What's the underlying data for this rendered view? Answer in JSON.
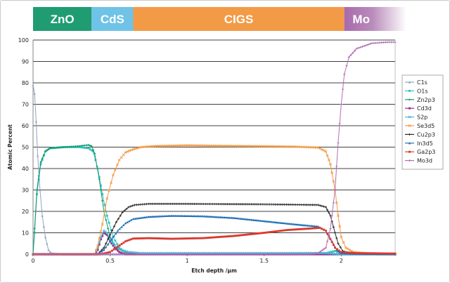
{
  "chart_data": {
    "type": "line",
    "xlabel": "Etch depth /µm",
    "ylabel": "Atomic Percent",
    "xlim": [
      0,
      2.35
    ],
    "ylim": [
      0,
      100
    ],
    "yticks": [
      0,
      10,
      20,
      30,
      40,
      50,
      60,
      70,
      80,
      90,
      100
    ],
    "xticks": [
      0,
      0.5,
      1,
      1.5,
      2
    ],
    "xtick_labels": [
      "0",
      "0.5",
      "1",
      "1.5",
      "2"
    ],
    "grid": "horizontal",
    "legend_position": "right",
    "layers": [
      {
        "label": "ZnO",
        "start": 0.0,
        "end": 0.38,
        "color": "#1f9c72"
      },
      {
        "label": "CdS",
        "start": 0.38,
        "end": 0.65,
        "color": "#6ec3e6"
      },
      {
        "label": "CIGS",
        "start": 0.65,
        "end": 2.02,
        "color": "#f39a46"
      },
      {
        "label": "Mo",
        "start": 2.02,
        "end": 2.35,
        "color": "#a86aac"
      }
    ],
    "series": [
      {
        "name": "C1s",
        "color": "#8da3c4",
        "marker": "triangle",
        "points": [
          [
            0,
            79
          ],
          [
            0.01,
            75
          ],
          [
            0.02,
            62
          ],
          [
            0.03,
            46
          ],
          [
            0.045,
            30
          ],
          [
            0.06,
            18
          ],
          [
            0.08,
            8
          ],
          [
            0.1,
            2
          ],
          [
            0.12,
            0.5
          ],
          [
            0.2,
            0
          ],
          [
            2.35,
            0
          ]
        ]
      },
      {
        "name": "O1s",
        "color": "#33c2c2",
        "marker": "square",
        "points": [
          [
            0,
            0
          ],
          [
            0.01,
            10
          ],
          [
            0.025,
            28
          ],
          [
            0.05,
            42
          ],
          [
            0.08,
            48
          ],
          [
            0.11,
            49.5
          ],
          [
            0.2,
            50
          ],
          [
            0.3,
            50
          ],
          [
            0.36,
            49.5
          ],
          [
            0.39,
            48
          ],
          [
            0.42,
            40
          ],
          [
            0.45,
            28
          ],
          [
            0.48,
            18
          ],
          [
            0.52,
            8
          ],
          [
            0.56,
            3
          ],
          [
            0.6,
            1
          ],
          [
            0.7,
            0.3
          ],
          [
            1.5,
            0.3
          ],
          [
            1.9,
            0.5
          ],
          [
            1.96,
            1.5
          ],
          [
            2.0,
            0.5
          ],
          [
            2.35,
            0
          ]
        ]
      },
      {
        "name": "Zn2p3",
        "color": "#159a6e",
        "marker": "diamond",
        "points": [
          [
            0,
            0
          ],
          [
            0.01,
            12
          ],
          [
            0.025,
            30
          ],
          [
            0.05,
            43
          ],
          [
            0.08,
            48
          ],
          [
            0.11,
            49.5
          ],
          [
            0.2,
            50
          ],
          [
            0.3,
            50.5
          ],
          [
            0.36,
            51
          ],
          [
            0.38,
            50.5
          ],
          [
            0.4,
            47
          ],
          [
            0.43,
            35
          ],
          [
            0.46,
            20
          ],
          [
            0.5,
            8
          ],
          [
            0.54,
            3
          ],
          [
            0.6,
            1
          ],
          [
            0.7,
            0
          ],
          [
            2.35,
            0
          ]
        ]
      },
      {
        "name": "Cd3d",
        "color": "#9a2a8a",
        "marker": "square",
        "points": [
          [
            0,
            0
          ],
          [
            0.4,
            0
          ],
          [
            0.42,
            2
          ],
          [
            0.44,
            7
          ],
          [
            0.46,
            10
          ],
          [
            0.48,
            9
          ],
          [
            0.5,
            6
          ],
          [
            0.53,
            3
          ],
          [
            0.56,
            1
          ],
          [
            0.6,
            0
          ],
          [
            2.35,
            0
          ]
        ]
      },
      {
        "name": "S2p",
        "color": "#4bb8d8",
        "marker": "x",
        "points": [
          [
            0,
            0
          ],
          [
            0.4,
            0
          ],
          [
            0.42,
            3
          ],
          [
            0.44,
            8
          ],
          [
            0.46,
            11
          ],
          [
            0.48,
            10
          ],
          [
            0.5,
            7
          ],
          [
            0.53,
            4
          ],
          [
            0.57,
            2
          ],
          [
            0.62,
            1
          ],
          [
            0.7,
            0.5
          ],
          [
            1.9,
            0.5
          ],
          [
            2.0,
            0
          ],
          [
            2.35,
            0
          ]
        ]
      },
      {
        "name": "Se3d5",
        "color": "#f39a46",
        "marker": "x",
        "points": [
          [
            0,
            0
          ],
          [
            0.4,
            0
          ],
          [
            0.42,
            4
          ],
          [
            0.45,
            14
          ],
          [
            0.48,
            26
          ],
          [
            0.52,
            37
          ],
          [
            0.56,
            44
          ],
          [
            0.6,
            47.5
          ],
          [
            0.65,
            49
          ],
          [
            0.7,
            50
          ],
          [
            0.8,
            50.5
          ],
          [
            1.0,
            50.8
          ],
          [
            1.2,
            50.6
          ],
          [
            1.5,
            50.4
          ],
          [
            1.7,
            50.2
          ],
          [
            1.85,
            49.8
          ],
          [
            1.9,
            48
          ],
          [
            1.93,
            42
          ],
          [
            1.96,
            30
          ],
          [
            1.98,
            18
          ],
          [
            2.0,
            8
          ],
          [
            2.03,
            3
          ],
          [
            2.08,
            1
          ],
          [
            2.15,
            0.5
          ],
          [
            2.35,
            0
          ]
        ]
      },
      {
        "name": "Cu2p3",
        "color": "#2a2a2a",
        "marker": "plus",
        "points": [
          [
            0,
            0
          ],
          [
            0.42,
            0
          ],
          [
            0.46,
            3
          ],
          [
            0.5,
            9
          ],
          [
            0.54,
            15
          ],
          [
            0.58,
            19.5
          ],
          [
            0.62,
            22
          ],
          [
            0.66,
            23
          ],
          [
            0.75,
            23.5
          ],
          [
            1.0,
            23.5
          ],
          [
            1.5,
            23.3
          ],
          [
            1.85,
            23
          ],
          [
            1.9,
            22
          ],
          [
            1.93,
            18
          ],
          [
            1.96,
            10
          ],
          [
            1.98,
            5
          ],
          [
            2.01,
            1.5
          ],
          [
            2.06,
            0.3
          ],
          [
            2.35,
            0
          ]
        ]
      },
      {
        "name": "In3d5",
        "color": "#1f6fb4",
        "marker": "triangle",
        "points": [
          [
            0,
            0
          ],
          [
            0.42,
            0
          ],
          [
            0.46,
            2
          ],
          [
            0.5,
            6
          ],
          [
            0.55,
            11
          ],
          [
            0.6,
            14.5
          ],
          [
            0.65,
            16.5
          ],
          [
            0.75,
            17.5
          ],
          [
            0.9,
            18
          ],
          [
            1.1,
            17.8
          ],
          [
            1.3,
            17
          ],
          [
            1.5,
            15.5
          ],
          [
            1.7,
            14
          ],
          [
            1.85,
            13
          ],
          [
            1.9,
            11
          ],
          [
            1.94,
            6
          ],
          [
            1.97,
            2
          ],
          [
            2.0,
            0.5
          ],
          [
            2.35,
            0
          ]
        ]
      },
      {
        "name": "Ga2p3",
        "color": "#d93a30",
        "marker": "square",
        "points": [
          [
            0,
            0
          ],
          [
            0.44,
            0
          ],
          [
            0.5,
            1
          ],
          [
            0.55,
            3.5
          ],
          [
            0.6,
            6
          ],
          [
            0.65,
            7.3
          ],
          [
            0.75,
            7.5
          ],
          [
            0.9,
            7.2
          ],
          [
            1.1,
            7.5
          ],
          [
            1.3,
            8.5
          ],
          [
            1.5,
            10
          ],
          [
            1.65,
            11.3
          ],
          [
            1.8,
            12
          ],
          [
            1.86,
            12.3
          ],
          [
            1.9,
            11
          ],
          [
            1.93,
            7
          ],
          [
            1.96,
            3
          ],
          [
            2.0,
            1
          ],
          [
            2.1,
            0.5
          ],
          [
            2.35,
            0.3
          ]
        ]
      },
      {
        "name": "Mo3d",
        "color": "#b46eb4",
        "marker": "plus",
        "points": [
          [
            0,
            0
          ],
          [
            1.8,
            0
          ],
          [
            1.85,
            0.5
          ],
          [
            1.9,
            3
          ],
          [
            1.93,
            12
          ],
          [
            1.96,
            30
          ],
          [
            1.98,
            52
          ],
          [
            2.0,
            70
          ],
          [
            2.02,
            84
          ],
          [
            2.05,
            92
          ],
          [
            2.1,
            96
          ],
          [
            2.2,
            98.5
          ],
          [
            2.3,
            99
          ],
          [
            2.35,
            99
          ]
        ]
      }
    ]
  }
}
